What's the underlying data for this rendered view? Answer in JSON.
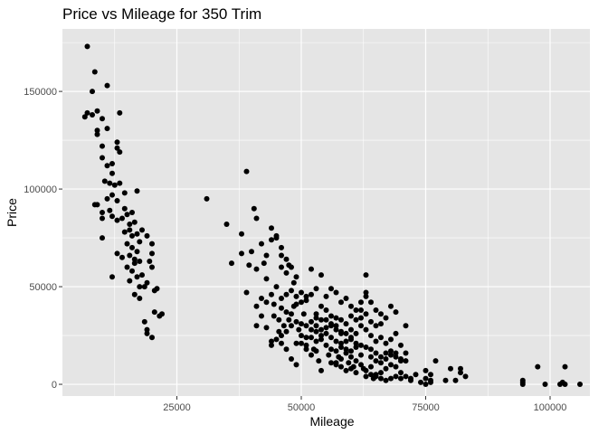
{
  "chart_data": {
    "type": "scatter",
    "title": "Price vs Mileage for 350 Trim",
    "xlabel": "Mileage",
    "ylabel": "Price",
    "xlim": [
      2000,
      108000
    ],
    "ylim": [
      -6000,
      182000
    ],
    "xticks": [
      25000,
      50000,
      75000,
      100000
    ],
    "xtick_labels": [
      "25000",
      "50000",
      "75000",
      "100000"
    ],
    "yticks": [
      0,
      50000,
      100000,
      150000
    ],
    "ytick_labels": [
      "0",
      "50000",
      "100000",
      "150000"
    ],
    "grid": true,
    "legend": "none",
    "colors": {
      "panel": "#e5e5e5",
      "grid": "#ffffff",
      "point": "#000000"
    },
    "points": [
      [
        7000,
        173000
      ],
      [
        8000,
        150000
      ],
      [
        8500,
        160000
      ],
      [
        7000,
        139000
      ],
      [
        6500,
        137000
      ],
      [
        8000,
        138000
      ],
      [
        9000,
        140000
      ],
      [
        9000,
        128000
      ],
      [
        9000,
        130000
      ],
      [
        10000,
        136000
      ],
      [
        11000,
        153000
      ],
      [
        13500,
        139000
      ],
      [
        10000,
        122000
      ],
      [
        11000,
        131000
      ],
      [
        12000,
        113000
      ],
      [
        13000,
        121000
      ],
      [
        13000,
        124000
      ],
      [
        13500,
        119000
      ],
      [
        10000,
        116000
      ],
      [
        11000,
        112000
      ],
      [
        12000,
        108000
      ],
      [
        10500,
        104000
      ],
      [
        11500,
        103000
      ],
      [
        12500,
        102000
      ],
      [
        13500,
        103000
      ],
      [
        14500,
        98000
      ],
      [
        12000,
        97000
      ],
      [
        11000,
        95000
      ],
      [
        13000,
        94000
      ],
      [
        9000,
        92000
      ],
      [
        10000,
        88000
      ],
      [
        11500,
        89000
      ],
      [
        12000,
        86000
      ],
      [
        13000,
        84000
      ],
      [
        14000,
        85000
      ],
      [
        15000,
        87000
      ],
      [
        16000,
        88000
      ],
      [
        17000,
        99000
      ],
      [
        14500,
        90000
      ],
      [
        15500,
        82000
      ],
      [
        16500,
        83000
      ],
      [
        15500,
        79000
      ],
      [
        14500,
        78000
      ],
      [
        16000,
        76000
      ],
      [
        17000,
        77000
      ],
      [
        15000,
        72000
      ],
      [
        16000,
        70000
      ],
      [
        17000,
        68000
      ],
      [
        15500,
        66000
      ],
      [
        16500,
        64000
      ],
      [
        14000,
        65000
      ],
      [
        13000,
        67000
      ],
      [
        17500,
        73000
      ],
      [
        18000,
        79000
      ],
      [
        16500,
        62000
      ],
      [
        17500,
        63000
      ],
      [
        15000,
        60000
      ],
      [
        18000,
        56000
      ],
      [
        16000,
        58000
      ],
      [
        17000,
        55000
      ],
      [
        15500,
        53000
      ],
      [
        16500,
        46000
      ],
      [
        17500,
        44000
      ],
      [
        18500,
        50000
      ],
      [
        19000,
        52000
      ],
      [
        17500,
        50000
      ],
      [
        10000,
        75000
      ],
      [
        10000,
        85000
      ],
      [
        8500,
        92000
      ],
      [
        12000,
        55000
      ],
      [
        20000,
        67000
      ],
      [
        20000,
        72000
      ],
      [
        20000,
        60000
      ],
      [
        19500,
        63000
      ],
      [
        21000,
        49000
      ],
      [
        21500,
        35000
      ],
      [
        22000,
        36000
      ],
      [
        20500,
        37000
      ],
      [
        19000,
        28000
      ],
      [
        19000,
        26000
      ],
      [
        20000,
        24000
      ],
      [
        18500,
        32000
      ],
      [
        19000,
        76000
      ],
      [
        20500,
        48000
      ],
      [
        31000,
        95000
      ],
      [
        35000,
        82000
      ],
      [
        36000,
        62000
      ],
      [
        38000,
        67000
      ],
      [
        39000,
        47000
      ],
      [
        39000,
        109000
      ],
      [
        40000,
        68000
      ],
      [
        40500,
        90000
      ],
      [
        41000,
        59000
      ],
      [
        42000,
        72000
      ],
      [
        43000,
        66000
      ],
      [
        43000,
        54000
      ],
      [
        44000,
        80000
      ],
      [
        45000,
        75000
      ],
      [
        44000,
        74000
      ],
      [
        46000,
        70000
      ],
      [
        47000,
        64000
      ],
      [
        48000,
        60000
      ],
      [
        47000,
        57000
      ],
      [
        46000,
        60000
      ],
      [
        45000,
        50000
      ],
      [
        44000,
        46000
      ],
      [
        42000,
        44000
      ],
      [
        41000,
        40000
      ],
      [
        43000,
        42000
      ],
      [
        44500,
        41000
      ],
      [
        46000,
        39000
      ],
      [
        47000,
        37000
      ],
      [
        48000,
        36000
      ],
      [
        49000,
        41000
      ],
      [
        50000,
        42000
      ],
      [
        51000,
        43000
      ],
      [
        48500,
        40000
      ],
      [
        47500,
        33000
      ],
      [
        46500,
        30000
      ],
      [
        45500,
        27000
      ],
      [
        45000,
        23000
      ],
      [
        44000,
        22000
      ],
      [
        43000,
        29000
      ],
      [
        41000,
        30000
      ],
      [
        42000,
        35000
      ],
      [
        44000,
        20000
      ],
      [
        46000,
        21000
      ],
      [
        47000,
        18000
      ],
      [
        48000,
        13000
      ],
      [
        49000,
        21000
      ],
      [
        50000,
        25000
      ],
      [
        51000,
        20000
      ],
      [
        52000,
        24000
      ],
      [
        53000,
        22000
      ],
      [
        52000,
        32000
      ],
      [
        53000,
        36000
      ],
      [
        54000,
        40000
      ],
      [
        55000,
        38000
      ],
      [
        53000,
        30000
      ],
      [
        54000,
        28000
      ],
      [
        55000,
        33000
      ],
      [
        56000,
        35000
      ],
      [
        57000,
        34000
      ],
      [
        58000,
        33000
      ],
      [
        56000,
        30000
      ],
      [
        57000,
        28000
      ],
      [
        58000,
        26000
      ],
      [
        59000,
        31000
      ],
      [
        60000,
        35000
      ],
      [
        61000,
        33000
      ],
      [
        62000,
        34000
      ],
      [
        63000,
        36000
      ],
      [
        60000,
        28000
      ],
      [
        61000,
        26000
      ],
      [
        62000,
        30000
      ],
      [
        63000,
        28000
      ],
      [
        64000,
        32000
      ],
      [
        65000,
        30000
      ],
      [
        66000,
        31000
      ],
      [
        67000,
        34000
      ],
      [
        68000,
        40000
      ],
      [
        64000,
        25000
      ],
      [
        65000,
        22000
      ],
      [
        66000,
        24000
      ],
      [
        67000,
        21000
      ],
      [
        68000,
        23000
      ],
      [
        69000,
        26000
      ],
      [
        70000,
        20000
      ],
      [
        71000,
        16000
      ],
      [
        69000,
        14000
      ],
      [
        70000,
        12000
      ],
      [
        68000,
        10000
      ],
      [
        67000,
        8000
      ],
      [
        66000,
        6000
      ],
      [
        65000,
        5000
      ],
      [
        64000,
        9000
      ],
      [
        63000,
        7000
      ],
      [
        62000,
        10000
      ],
      [
        61000,
        12000
      ],
      [
        60000,
        14000
      ],
      [
        59000,
        16000
      ],
      [
        58000,
        13000
      ],
      [
        57000,
        11000
      ],
      [
        56000,
        18000
      ],
      [
        55000,
        20000
      ],
      [
        54000,
        23000
      ],
      [
        53000,
        17000
      ],
      [
        52000,
        15000
      ],
      [
        51000,
        18000
      ],
      [
        50000,
        21000
      ],
      [
        49000,
        10000
      ],
      [
        54000,
        7000
      ],
      [
        52000,
        59000
      ],
      [
        54000,
        56000
      ],
      [
        55000,
        45000
      ],
      [
        56000,
        49000
      ],
      [
        57000,
        47000
      ],
      [
        58000,
        42000
      ],
      [
        59000,
        44000
      ],
      [
        60000,
        40000
      ],
      [
        61000,
        38000
      ],
      [
        62000,
        38000
      ],
      [
        63000,
        56000
      ],
      [
        63000,
        47000
      ],
      [
        62000,
        42000
      ],
      [
        60000,
        24000
      ],
      [
        59000,
        22000
      ],
      [
        58000,
        21000
      ],
      [
        57000,
        22000
      ],
      [
        56000,
        24000
      ],
      [
        55000,
        26000
      ],
      [
        54000,
        25000
      ],
      [
        53000,
        27000
      ],
      [
        52000,
        28000
      ],
      [
        51000,
        30000
      ],
      [
        50000,
        31000
      ],
      [
        49000,
        32000
      ],
      [
        48000,
        30000
      ],
      [
        47000,
        27000
      ],
      [
        46000,
        25000
      ],
      [
        57000,
        17000
      ],
      [
        58000,
        19000
      ],
      [
        59000,
        18000
      ],
      [
        60000,
        17000
      ],
      [
        61000,
        19000
      ],
      [
        62000,
        20000
      ],
      [
        63000,
        19000
      ],
      [
        64000,
        18000
      ],
      [
        65000,
        16000
      ],
      [
        66000,
        14000
      ],
      [
        67000,
        13000
      ],
      [
        68000,
        15000
      ],
      [
        69000,
        9000
      ],
      [
        70000,
        6000
      ],
      [
        71000,
        4000
      ],
      [
        72000,
        2000
      ],
      [
        70000,
        3000
      ],
      [
        69000,
        4000
      ],
      [
        68000,
        3000
      ],
      [
        67000,
        2000
      ],
      [
        66000,
        3000
      ],
      [
        65000,
        4000
      ],
      [
        64000,
        5000
      ],
      [
        63000,
        4000
      ],
      [
        61000,
        6000
      ],
      [
        60000,
        8000
      ],
      [
        59000,
        7000
      ],
      [
        58000,
        9000
      ],
      [
        57000,
        10000
      ],
      [
        56000,
        11000
      ],
      [
        62000,
        15000
      ],
      [
        61000,
        21000
      ],
      [
        60000,
        23000
      ],
      [
        59000,
        26000
      ],
      [
        58000,
        27000
      ],
      [
        57000,
        30000
      ],
      [
        56000,
        31000
      ],
      [
        55000,
        29000
      ],
      [
        54000,
        33000
      ],
      [
        53000,
        34000
      ],
      [
        64000,
        14000
      ],
      [
        65000,
        12000
      ],
      [
        66000,
        11000
      ],
      [
        67000,
        16000
      ],
      [
        68000,
        17000
      ],
      [
        69000,
        16000
      ],
      [
        70000,
        13000
      ],
      [
        71000,
        12000
      ],
      [
        72000,
        3000
      ],
      [
        73000,
        5000
      ],
      [
        75000,
        3000
      ],
      [
        76000,
        2000
      ],
      [
        75000,
        7000
      ],
      [
        76000,
        5000
      ],
      [
        77000,
        12000
      ],
      [
        79000,
        2000
      ],
      [
        80000,
        8000
      ],
      [
        81000,
        2000
      ],
      [
        82000,
        6000
      ],
      [
        83000,
        4000
      ],
      [
        74000,
        1000
      ],
      [
        75000,
        0
      ],
      [
        76000,
        1000
      ],
      [
        82000,
        8000
      ],
      [
        94500,
        1000
      ],
      [
        94500,
        2000
      ],
      [
        94500,
        0
      ],
      [
        97500,
        9000
      ],
      [
        99000,
        0
      ],
      [
        103000,
        9000
      ],
      [
        102000,
        0
      ],
      [
        103000,
        0
      ],
      [
        102500,
        1000
      ],
      [
        106000,
        0
      ],
      [
        63000,
        45000
      ],
      [
        64000,
        42000
      ],
      [
        65000,
        38000
      ],
      [
        66000,
        36000
      ],
      [
        69000,
        37000
      ],
      [
        71000,
        30000
      ],
      [
        52000,
        46000
      ],
      [
        53000,
        49000
      ],
      [
        50000,
        47000
      ],
      [
        51000,
        45000
      ],
      [
        49000,
        45000
      ],
      [
        48000,
        48000
      ],
      [
        47000,
        46000
      ],
      [
        46000,
        44000
      ],
      [
        44500,
        35000
      ],
      [
        45500,
        33000
      ],
      [
        41000,
        85000
      ],
      [
        38000,
        77000
      ],
      [
        42500,
        62000
      ],
      [
        39500,
        61000
      ],
      [
        45000,
        76000
      ],
      [
        46000,
        66000
      ],
      [
        47500,
        61000
      ],
      [
        48500,
        52000
      ],
      [
        49000,
        55000
      ],
      [
        50500,
        36000
      ],
      [
        49500,
        28000
      ],
      [
        51000,
        24000
      ],
      [
        52500,
        18000
      ],
      [
        53500,
        12000
      ],
      [
        55500,
        15000
      ],
      [
        57500,
        14000
      ],
      [
        59500,
        11000
      ],
      [
        60500,
        9000
      ],
      [
        62500,
        8000
      ],
      [
        64500,
        3000
      ]
    ]
  }
}
